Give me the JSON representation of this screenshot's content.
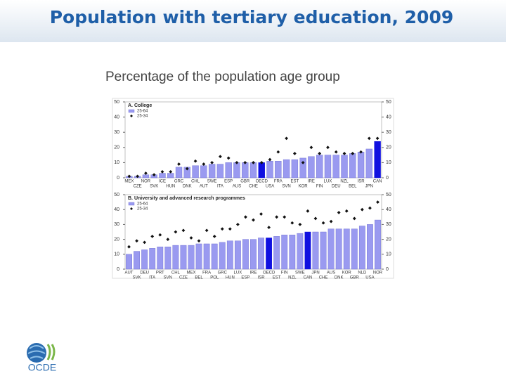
{
  "title": "Population with tertiary education, 2009",
  "subtitle": "Percentage of the population age group",
  "logo": "OCDE",
  "chart_data": [
    {
      "type": "bar",
      "title": "A. College",
      "categories": [
        "MEX",
        "CZE",
        "NOR",
        "SVK",
        "ICE",
        "HUN",
        "GRC",
        "DNK",
        "CHL",
        "AUT",
        "SWE",
        "ITA",
        "ESP",
        "AUS",
        "GBR",
        "CHE",
        "OECD",
        "USA",
        "FRA",
        "SVN",
        "EST",
        "KOR",
        "IRE",
        "FIN",
        "LUX",
        "DEU",
        "NZL",
        "BEL",
        "ISR",
        "JPN",
        "CAN"
      ],
      "series": [
        {
          "name": "25-64",
          "color": "#9a9af0",
          "values": [
            1,
            1,
            2,
            2,
            3,
            3,
            7,
            7,
            8,
            8,
            9,
            9,
            10,
            10,
            10,
            10,
            10,
            11,
            11,
            12,
            12,
            13,
            14,
            15,
            15,
            15,
            15,
            16,
            17,
            19,
            24
          ]
        },
        {
          "name": "25-34",
          "color": "#111111",
          "marker": "diamond",
          "values": [
            1,
            1,
            3,
            2,
            4,
            4,
            9,
            6,
            11,
            9,
            10,
            14,
            13,
            10,
            10,
            10,
            10,
            12,
            17,
            26,
            16,
            10,
            20,
            16,
            20,
            17,
            16,
            16,
            17,
            26,
            26
          ]
        }
      ],
      "highlight_color": "#1010e0",
      "highlight_indices": [
        16,
        30
      ],
      "ylim": [
        0,
        50
      ],
      "yticks": [
        0,
        10,
        20,
        30,
        40,
        50
      ],
      "grid": false
    },
    {
      "type": "bar",
      "title": "B. University and advanced research programmes",
      "categories": [
        "AUT",
        "SVK",
        "DEU",
        "ITA",
        "PRT",
        "SVN",
        "CHL",
        "CZE",
        "MEX",
        "BEL",
        "FRA",
        "POL",
        "GRC",
        "HUN",
        "LUX",
        "ESP",
        "IRE",
        "ISR",
        "OECD",
        "EST",
        "FIN",
        "NZL",
        "SWE",
        "CAN",
        "JPN",
        "CHE",
        "AUS",
        "DNK",
        "KOR",
        "GBR",
        "NLD",
        "USA",
        "NOR"
      ],
      "series": [
        {
          "name": "25-64",
          "color": "#9a9af0",
          "values": [
            10,
            12,
            13,
            14,
            15,
            15,
            16,
            16,
            16,
            17,
            17,
            17,
            18,
            19,
            19,
            20,
            20,
            21,
            21,
            22,
            23,
            23,
            24,
            25,
            25,
            25,
            27,
            27,
            27,
            27,
            29,
            30,
            33
          ]
        },
        {
          "name": "25-34",
          "color": "#111111",
          "marker": "diamond",
          "values": [
            15,
            19,
            18,
            22,
            23,
            20,
            25,
            26,
            21,
            19,
            26,
            22,
            27,
            27,
            30,
            35,
            33,
            37,
            28,
            35,
            35,
            31,
            30,
            39,
            34,
            31,
            32,
            38,
            39,
            34,
            40,
            41,
            45
          ]
        }
      ],
      "highlight_color": "#1010e0",
      "highlight_indices": [
        18,
        23
      ],
      "ylim": [
        0,
        50
      ],
      "yticks": [
        0,
        10,
        20,
        30,
        40,
        50
      ],
      "grid": false
    }
  ]
}
